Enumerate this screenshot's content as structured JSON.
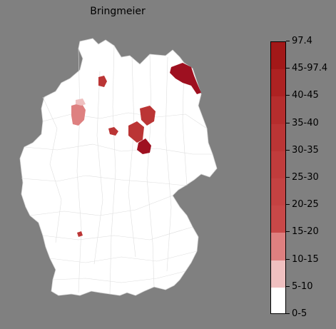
{
  "title": "Bringmeier",
  "colorbar": {
    "tick_labels": [
      "0-5",
      "5-10",
      "10-15",
      "15-20",
      "20-25",
      "25-30",
      "30-35",
      "35-40",
      "40-45",
      "45-97.4",
      "97.4"
    ],
    "segment_colors": [
      "#ffffff",
      "#efc0c0",
      "#de8080",
      "#c84848",
      "#c44242",
      "#c03c3c",
      "#bb3535",
      "#b52d2d",
      "#ad2222",
      "#a21818"
    ]
  },
  "colors": {
    "background": "#808080",
    "land": "#ffffff",
    "border_lines": "#d0d0d0"
  },
  "highlighted_regions": [
    {
      "name": "Vorpommern-Greifswald",
      "class": "45-97.4",
      "color": "#9e1020"
    },
    {
      "name": "Anhalt-Bitterfeld",
      "class": "45-97.4",
      "color": "#9e1020"
    },
    {
      "name": "Salzwedel",
      "class": "30-35",
      "color": "#bb3535"
    },
    {
      "name": "Börde",
      "class": "30-35",
      "color": "#bb3535"
    },
    {
      "name": "Rotenburg",
      "class": "30-35",
      "color": "#bb3535"
    },
    {
      "name": "Goslar",
      "class": "30-35",
      "color": "#bb3535"
    },
    {
      "name": "Osnabrück",
      "class": "10-15",
      "color": "#de8080"
    },
    {
      "name": "Emsland",
      "class": "5-10",
      "color": "#efc0c0"
    },
    {
      "name": "Karlsruhe",
      "class": "30-35",
      "color": "#bb3535"
    }
  ]
}
